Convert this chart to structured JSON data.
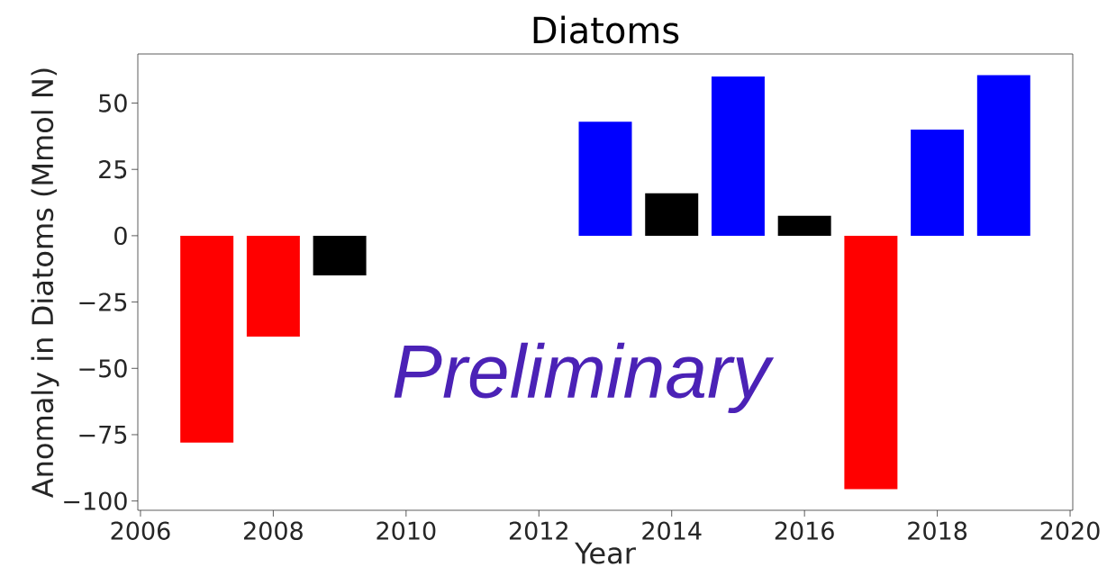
{
  "chart_data": {
    "type": "bar",
    "title": "Diatoms",
    "xlabel": "Year",
    "ylabel": "Anomaly in Diatoms (Mmol N)",
    "x": [
      2007,
      2008,
      2009,
      2013,
      2014,
      2015,
      2016,
      2017,
      2018,
      2019
    ],
    "values": [
      -78,
      -38,
      -15,
      43,
      16,
      60,
      7.5,
      -95.5,
      40,
      60.5
    ],
    "colors": [
      "#ff0000",
      "#ff0000",
      "#000000",
      "#0000ff",
      "#000000",
      "#0000ff",
      "#000000",
      "#ff0000",
      "#0000ff",
      "#0000ff"
    ],
    "xlim": [
      2005.96,
      2020.04
    ],
    "ylim": [
      -103.5,
      68.5
    ],
    "xticks": [
      2006,
      2008,
      2010,
      2012,
      2014,
      2016,
      2018,
      2020
    ],
    "yticks": [
      {
        "value": -100,
        "label": "−100"
      },
      {
        "value": -75,
        "label": "−75"
      },
      {
        "value": -50,
        "label": "−50"
      },
      {
        "value": -25,
        "label": "−25"
      },
      0,
      25,
      50
    ],
    "annotations": [
      "Preliminary"
    ]
  }
}
